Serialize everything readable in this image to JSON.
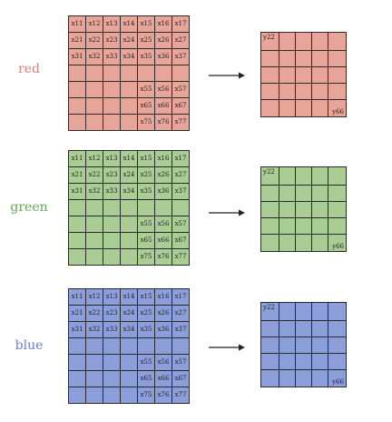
{
  "channels": [
    {
      "label": "red",
      "label_color": "#e08080",
      "fill": "#e8a69a",
      "input_rows": [
        [
          "x11",
          "x12",
          "x13",
          "x14",
          "x15",
          "x16",
          "x17"
        ],
        [
          "x21",
          "x22",
          "x23",
          "x24",
          "x25",
          "x26",
          "x27"
        ],
        [
          "x31",
          "x32",
          "x33",
          "x34",
          "x35",
          "x36",
          "x37"
        ],
        [
          "",
          "",
          "",
          "",
          "",
          "",
          ""
        ],
        [
          "",
          "",
          "",
          "",
          "x55",
          "x56",
          "x57"
        ],
        [
          "",
          "",
          "",
          "",
          "x65",
          "x66",
          "x67"
        ],
        [
          "",
          "",
          "",
          "",
          "x75",
          "x76",
          "x77"
        ]
      ],
      "output_top_left": "y22",
      "output_bottom_right": "y66"
    },
    {
      "label": "green",
      "label_color": "#6aa84f",
      "fill": "#a9cd95",
      "input_rows": [
        [
          "x11",
          "x12",
          "x13",
          "x14",
          "x15",
          "x16",
          "x17"
        ],
        [
          "x21",
          "x22",
          "x23",
          "x24",
          "x25",
          "x26",
          "x27"
        ],
        [
          "x31",
          "x32",
          "x33",
          "x34",
          "x35",
          "x36",
          "x37"
        ],
        [
          "",
          "",
          "",
          "",
          "",
          "",
          ""
        ],
        [
          "",
          "",
          "",
          "",
          "x55",
          "x56",
          "x57"
        ],
        [
          "",
          "",
          "",
          "",
          "x65",
          "x66",
          "x67"
        ],
        [
          "",
          "",
          "",
          "",
          "x75",
          "x76",
          "x77"
        ]
      ],
      "output_top_left": "y22",
      "output_bottom_right": "y66"
    },
    {
      "label": "blue",
      "label_color": "#6c7fc4",
      "fill": "#8c9fdb",
      "input_rows": [
        [
          "x11",
          "x12",
          "x13",
          "x14",
          "x15",
          "x16",
          "x17"
        ],
        [
          "x21",
          "x22",
          "x23",
          "x24",
          "x25",
          "x26",
          "x27"
        ],
        [
          "x31",
          "x32",
          "x33",
          "x34",
          "x35",
          "x36",
          "x37"
        ],
        [
          "",
          "",
          "",
          "",
          "",
          "",
          ""
        ],
        [
          "",
          "",
          "",
          "",
          "x55",
          "x56",
          "x57"
        ],
        [
          "",
          "",
          "",
          "",
          "x65",
          "x66",
          "x67"
        ],
        [
          "",
          "",
          "",
          "",
          "x75",
          "x76",
          "x77"
        ]
      ],
      "output_top_left": "y22",
      "output_bottom_right": "y66"
    }
  ]
}
